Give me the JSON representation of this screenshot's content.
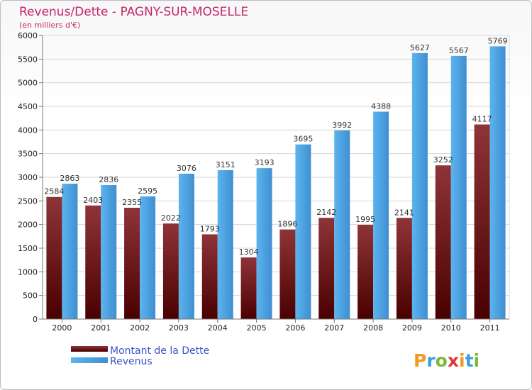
{
  "chart_data": {
    "type": "bar",
    "title": "Revenus/Dette - PAGNY-SUR-MOSELLE",
    "subtitle": "(en milliers d'€)",
    "categories": [
      "2000",
      "2001",
      "2002",
      "2003",
      "2004",
      "2005",
      "2006",
      "2007",
      "2008",
      "2009",
      "2010",
      "2011"
    ],
    "series": [
      {
        "name": "Montant de la Dette",
        "values": [
          2584,
          2403,
          2355,
          2022,
          1793,
          1304,
          1896,
          2142,
          1995,
          2141,
          3252,
          4117
        ],
        "color": "#7a1a1a"
      },
      {
        "name": "Revenus",
        "values": [
          2863,
          2836,
          2595,
          3076,
          3151,
          3193,
          3695,
          3992,
          4388,
          5627,
          5567,
          5769
        ],
        "color": "#4aa0e0"
      }
    ],
    "ylim": [
      0,
      6000
    ],
    "yticks": [
      0,
      500,
      1000,
      1500,
      2000,
      2500,
      3000,
      3500,
      4000,
      4500,
      5000,
      5500,
      6000
    ],
    "grid": true,
    "legend_position": "bottom-left"
  },
  "logo": {
    "text": "Proxiti",
    "colors": [
      "#f29a1f",
      "#3aa0dc",
      "#7ab83a",
      "#e0373a",
      "#f29a1f",
      "#3aa0dc",
      "#7ab83a"
    ]
  }
}
